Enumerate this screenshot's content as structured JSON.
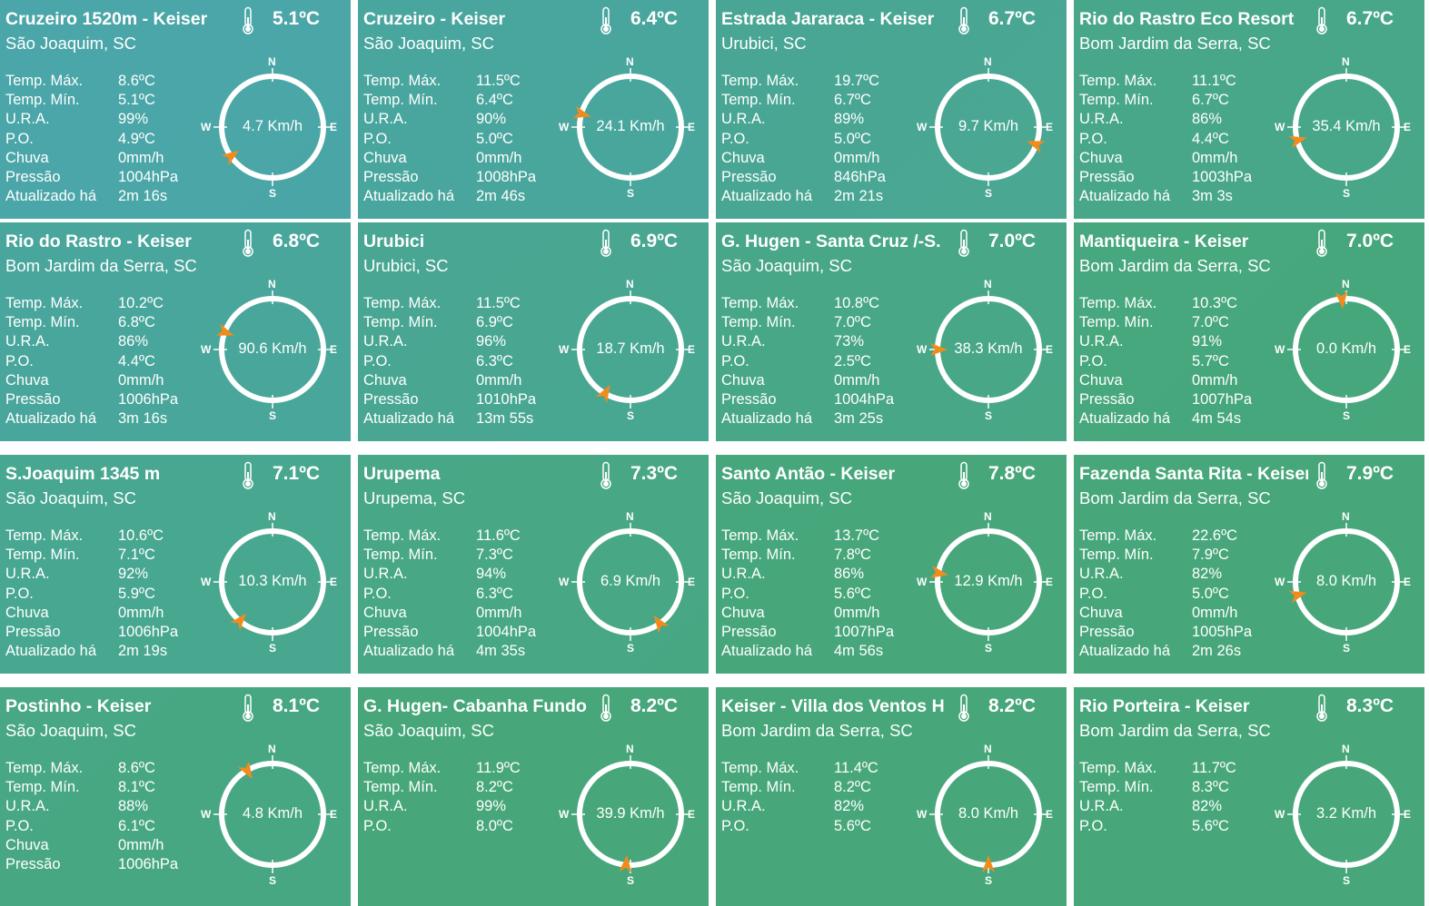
{
  "labels": {
    "max": "Temp. Máx.",
    "min": "Temp. Mín.",
    "ura": "U.R.A.",
    "po": "P.O.",
    "rain": "Chuva",
    "pressure": "Pressão",
    "updated": "Atualizado há",
    "n": "N",
    "s": "S",
    "e": "E",
    "w": "W"
  },
  "colors": {
    "gradient_top_left": "#4aa6a9",
    "gradient_bottom_right": "#47a77a",
    "arrow": "#f38b1c",
    "ring": "#ffffff"
  },
  "icons": {
    "temperature": "thermometer-icon"
  },
  "stations": [
    {
      "name": "Cruzeiro 1520m - Keiser",
      "location": "São Joaquim, SC",
      "temp": "5.1ºC",
      "max": "8.6ºC",
      "min": "5.1ºC",
      "ura": "99%",
      "po": "4.9ºC",
      "rain": "0mm/h",
      "pressure": "1004hPa",
      "updated": "2m 16s",
      "wind_speed": "4.7 Km/h",
      "wind_direction_deg": 235
    },
    {
      "name": "Cruzeiro - Keiser",
      "location": "São Joaquim, SC",
      "temp": "6.4ºC",
      "max": "11.5ºC",
      "min": "6.4ºC",
      "ura": "90%",
      "po": "5.0ºC",
      "rain": "0mm/h",
      "pressure": "1008hPa",
      "updated": "2m 46s",
      "wind_speed": "24.1 Km/h",
      "wind_direction_deg": 285
    },
    {
      "name": "Estrada Jararaca - Keiser",
      "location": "Urubici, SC",
      "temp": "6.7ºC",
      "max": "19.7ºC",
      "min": "6.7ºC",
      "ura": "89%",
      "po": "5.0ºC",
      "rain": "0mm/h",
      "pressure": "846hPa",
      "updated": "2m 21s",
      "wind_speed": "9.7 Km/h",
      "wind_direction_deg": 110
    },
    {
      "name": "Rio do Rastro Eco Resort",
      "location": "Bom Jardim da Serra, SC",
      "temp": "6.7ºC",
      "max": "11.1ºC",
      "min": "6.7ºC",
      "ura": "86%",
      "po": "4.4ºC",
      "rain": "0mm/h",
      "pressure": "1003hPa",
      "updated": "3m 3s",
      "wind_speed": "35.4 Km/h",
      "wind_direction_deg": 255
    },
    {
      "name": "Rio do Rastro - Keiser",
      "location": "Bom Jardim da Serra, SC",
      "temp": "6.8ºC",
      "max": "10.2ºC",
      "min": "6.8ºC",
      "ura": "86%",
      "po": "4.4ºC",
      "rain": "0mm/h",
      "pressure": "1006hPa",
      "updated": "3m 16s",
      "wind_speed": "90.6 Km/h",
      "wind_direction_deg": 290
    },
    {
      "name": "Urubici",
      "location": "Urubici, SC",
      "temp": "6.9ºC",
      "max": "11.5ºC",
      "min": "6.9ºC",
      "ura": "96%",
      "po": "6.3ºC",
      "rain": "0mm/h",
      "pressure": "1010hPa",
      "updated": "13m 55s",
      "wind_speed": "18.7 Km/h",
      "wind_direction_deg": 210
    },
    {
      "name": "G. Hugen - Santa Cruz /-S.",
      "location": "São Joaquim, SC",
      "temp": "7.0ºC",
      "max": "10.8ºC",
      "min": "7.0ºC",
      "ura": "73%",
      "po": "2.5ºC",
      "rain": "0mm/h",
      "pressure": "1004hPa",
      "updated": "3m 25s",
      "wind_speed": "38.3 Km/h",
      "wind_direction_deg": 270
    },
    {
      "name": "Mantiqueira - Keiser",
      "location": "Bom Jardim da Serra, SC",
      "temp": "7.0ºC",
      "max": "10.3ºC",
      "min": "7.0ºC",
      "ura": "91%",
      "po": "5.7ºC",
      "rain": "0mm/h",
      "pressure": "1007hPa",
      "updated": "4m 54s",
      "wind_speed": "0.0 Km/h",
      "wind_direction_deg": 355
    },
    {
      "name": "S.Joaquim 1345 m",
      "location": "São Joaquim, SC",
      "temp": "7.1ºC",
      "max": "10.6ºC",
      "min": "7.1ºC",
      "ura": "92%",
      "po": "5.9ºC",
      "rain": "0mm/h",
      "pressure": "1006hPa",
      "updated": "2m 19s",
      "wind_speed": "10.3 Km/h",
      "wind_direction_deg": 220
    },
    {
      "name": "Urupema",
      "location": "Urupema, SC",
      "temp": "7.3ºC",
      "max": "11.6ºC",
      "min": "7.3ºC",
      "ura": "94%",
      "po": "6.3ºC",
      "rain": "0mm/h",
      "pressure": "1004hPa",
      "updated": "4m 35s",
      "wind_speed": "6.9 Km/h",
      "wind_direction_deg": 145
    },
    {
      "name": "Santo Antão - Keiser",
      "location": "São Joaquim, SC",
      "temp": "7.8ºC",
      "max": "13.7ºC",
      "min": "7.8ºC",
      "ura": "86%",
      "po": "5.6ºC",
      "rain": "0mm/h",
      "pressure": "1007hPa",
      "updated": "4m 56s",
      "wind_speed": "12.9 Km/h",
      "wind_direction_deg": 280
    },
    {
      "name": "Fazenda Santa Rita - Keiser",
      "location": "Bom Jardim da Serra, SC",
      "temp": "7.9ºC",
      "max": "22.6ºC",
      "min": "7.9ºC",
      "ura": "82%",
      "po": "5.0ºC",
      "rain": "0mm/h",
      "pressure": "1005hPa",
      "updated": "2m 26s",
      "wind_speed": "8.0 Km/h",
      "wind_direction_deg": 255
    },
    {
      "name": "Postinho - Keiser",
      "location": "São Joaquim, SC",
      "temp": "8.1ºC",
      "max": "8.6ºC",
      "min": "8.1ºC",
      "ura": "88%",
      "po": "6.1ºC",
      "rain": "0mm/h",
      "pressure": "1006hPa",
      "updated": "",
      "wind_speed": "4.8 Km/h",
      "wind_direction_deg": 330
    },
    {
      "name": " G. Hugen- Cabanha Fundo",
      "location": "São Joaquim, SC",
      "temp": "8.2ºC",
      "max": "11.9ºC",
      "min": "8.2ºC",
      "ura": "99%",
      "po": "8.0ºC",
      "rain": "",
      "pressure": "",
      "updated": "",
      "wind_speed": "39.9 Km/h",
      "wind_direction_deg": 185
    },
    {
      "name": " Keiser - Villa dos Ventos H",
      "location": "Bom Jardim da Serra, SC",
      "temp": "8.2ºC",
      "max": "11.4ºC",
      "min": "8.2ºC",
      "ura": "82%",
      "po": "5.6ºC",
      "rain": "",
      "pressure": "",
      "updated": "",
      "wind_speed": "8.0 Km/h",
      "wind_direction_deg": 180
    },
    {
      "name": "Rio Porteira - Keiser",
      "location": "Bom Jardim da Serra, SC",
      "temp": "8.3ºC",
      "max": "11.7ºC",
      "min": "8.3ºC",
      "ura": "82%",
      "po": "5.6ºC",
      "rain": "",
      "pressure": "",
      "updated": "",
      "wind_speed": "3.2 Km/h",
      "wind_direction_deg": null
    }
  ]
}
